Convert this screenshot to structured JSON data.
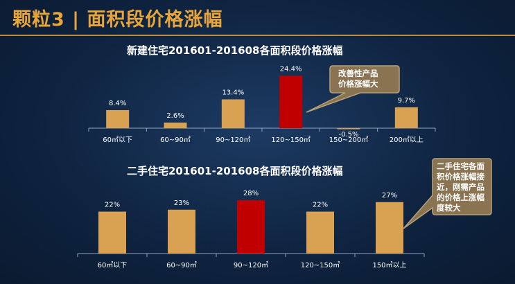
{
  "page": {
    "title": "颗粒3 | 面积段价格涨幅"
  },
  "chart_data": [
    {
      "type": "bar",
      "title": "新建住宅201601-201608各面积段价格涨幅",
      "categories": [
        "60㎡以下",
        "60~90㎡",
        "90~120㎡",
        "120~150㎡",
        "150~200㎡",
        "200㎡以上"
      ],
      "values": [
        8.4,
        2.6,
        13.4,
        24.4,
        -0.5,
        9.7
      ],
      "value_labels": [
        "8.4%",
        "2.6%",
        "13.4%",
        "24.4%",
        "-0.5%",
        "9.7%"
      ],
      "highlight_index": 3,
      "colors": {
        "bar": "#d9a152",
        "highlight": "#c00000"
      },
      "xlabel": "",
      "ylabel": ""
    },
    {
      "type": "bar",
      "title": "二手住宅201601-201608各面积段价格涨幅",
      "categories": [
        "60㎡以下",
        "60~90㎡",
        "90~120㎡",
        "120~150㎡",
        "150㎡以上"
      ],
      "values": [
        22,
        23,
        28,
        22,
        27
      ],
      "value_labels": [
        "22%",
        "23%",
        "28%",
        "22%",
        "27%"
      ],
      "highlight_index": 2,
      "colors": {
        "bar": "#d9a152",
        "highlight": "#c00000"
      },
      "xlabel": "",
      "ylabel": ""
    }
  ],
  "callouts": [
    {
      "lines": [
        "改善性产品",
        "价格涨幅大"
      ]
    },
    {
      "lines": [
        "二手住宅各面",
        "积价格涨幅接",
        "近，刚需产品",
        "的价格上涨幅",
        "度较大"
      ]
    }
  ],
  "colors": {
    "title": "#e8a53a",
    "callout_fill": "#8a7350",
    "callout_border": "#b9a27a"
  }
}
